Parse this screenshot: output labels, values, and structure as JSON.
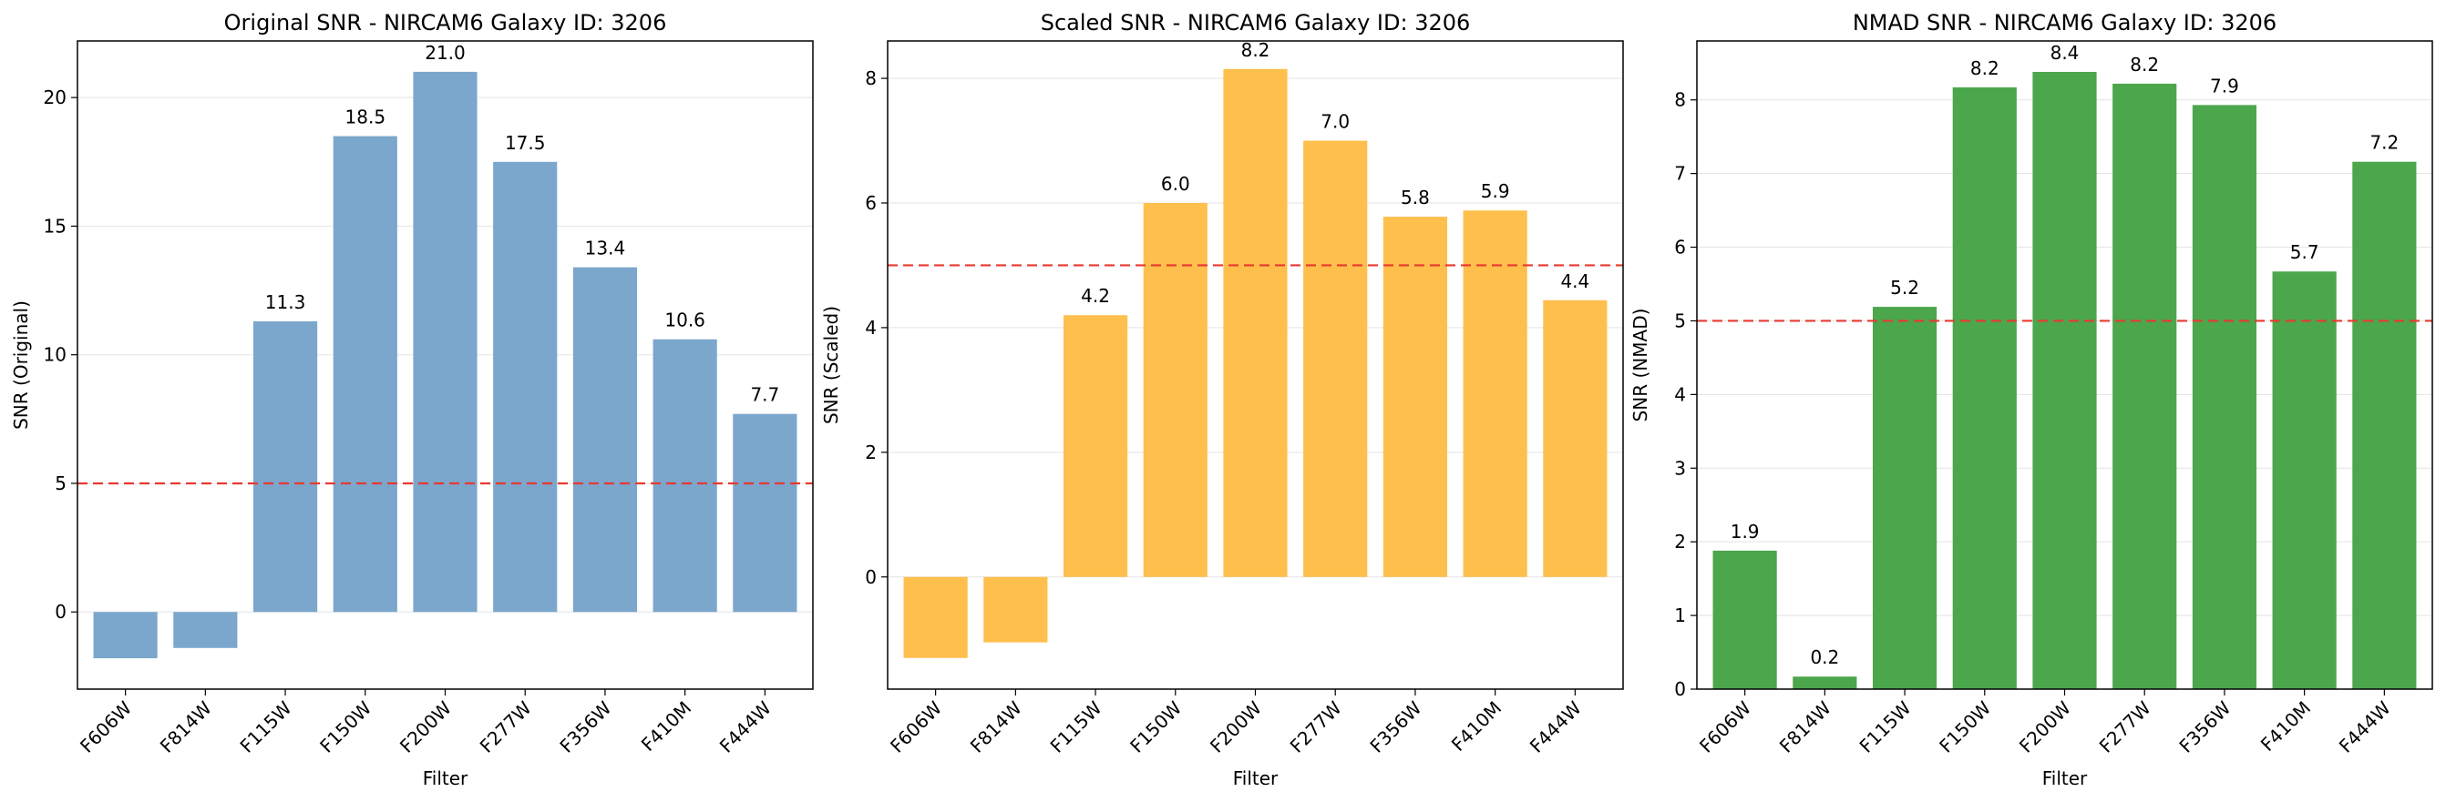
{
  "chart_data": [
    {
      "type": "bar",
      "title": "Original SNR - NIRCAM6 Galaxy ID: 3206",
      "xlabel": "Filter",
      "ylabel": "SNR (Original)",
      "categories": [
        "F606W",
        "F814W",
        "F115W",
        "F150W",
        "F200W",
        "F277W",
        "F356W",
        "F410M",
        "F444W"
      ],
      "values": [
        -1.8,
        -1.4,
        11.3,
        18.5,
        21.0,
        17.5,
        13.4,
        10.6,
        7.7
      ],
      "value_labels": [
        null,
        null,
        "11.3",
        "18.5",
        "21.0",
        "17.5",
        "13.4",
        "10.6",
        "7.7"
      ],
      "ylim": [
        -3.0,
        22.2
      ],
      "yticks": [
        0,
        5,
        10,
        15,
        20
      ],
      "threshold": 5,
      "bar_color": "#7ba7cc",
      "threshold_color": "#e8392f",
      "grid": "y-axis"
    },
    {
      "type": "bar",
      "title": "Scaled SNR - NIRCAM6 Galaxy ID: 3206",
      "xlabel": "Filter",
      "ylabel": "SNR (Scaled)",
      "categories": [
        "F606W",
        "F814W",
        "F115W",
        "F150W",
        "F200W",
        "F277W",
        "F356W",
        "F410M",
        "F444W"
      ],
      "values": [
        -1.3,
        -1.05,
        4.2,
        6.0,
        8.15,
        7.0,
        5.78,
        5.88,
        4.44
      ],
      "value_labels": [
        null,
        null,
        "4.2",
        "6.0",
        "8.2",
        "7.0",
        "5.8",
        "5.9",
        "4.4"
      ],
      "ylim": [
        -1.8,
        8.6
      ],
      "yticks": [
        0,
        2,
        4,
        6,
        8
      ],
      "threshold": 5,
      "bar_color": "#ffbf4d",
      "threshold_color": "#e8392f",
      "grid": "y-axis"
    },
    {
      "type": "bar",
      "title": "NMAD SNR - NIRCAM6 Galaxy ID: 3206",
      "xlabel": "Filter",
      "ylabel": "SNR (NMAD)",
      "categories": [
        "F606W",
        "F814W",
        "F115W",
        "F150W",
        "F200W",
        "F277W",
        "F356W",
        "F410M",
        "F444W"
      ],
      "values": [
        1.88,
        0.17,
        5.19,
        8.17,
        8.38,
        8.22,
        7.93,
        5.67,
        7.16
      ],
      "value_labels": [
        "1.9",
        "0.2",
        "5.2",
        "8.2",
        "8.4",
        "8.2",
        "7.9",
        "5.7",
        "7.2"
      ],
      "ylim": [
        0,
        8.8
      ],
      "yticks": [
        0,
        1,
        2,
        3,
        4,
        5,
        6,
        7,
        8
      ],
      "threshold": 5,
      "bar_color": "#4ca64c",
      "threshold_color": "#e8392f",
      "grid": "y-axis"
    }
  ]
}
